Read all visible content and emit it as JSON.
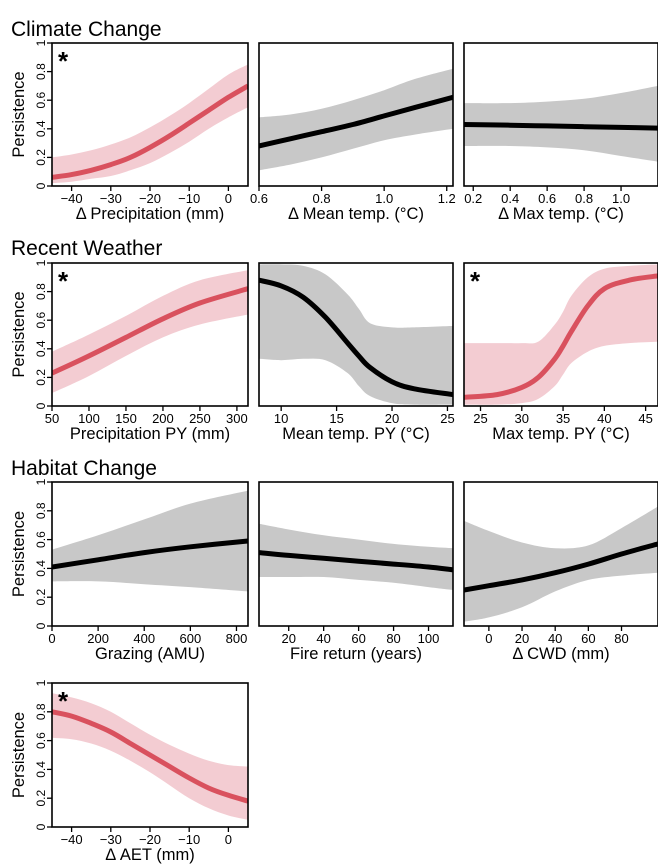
{
  "colors": {
    "sig_line": "#d9515e",
    "sig_band": "#f3ccd2",
    "ns_line": "#000000",
    "ns_band": "#c8c8c8"
  },
  "sections": [
    {
      "title": "Climate Change"
    },
    {
      "title": "Recent Weather"
    },
    {
      "title": "Habitat Change"
    },
    {
      "title": ""
    }
  ],
  "y_axis": {
    "label": "Persistence",
    "ticks": [
      "0",
      "0.2",
      "0.4",
      "0.6",
      "0.8",
      "1"
    ]
  },
  "chart_data": [
    {
      "type": "line",
      "section": 0,
      "col": 0,
      "xlabel": "Δ Precipitation (mm)",
      "significant": true,
      "star": "*",
      "xlim": [
        -45,
        5
      ],
      "ylim": [
        0,
        1
      ],
      "xticks": [
        -40,
        -30,
        -20,
        -10,
        0
      ],
      "xtick_labels": [
        "−40",
        "−30",
        "−20",
        "−10",
        "0"
      ],
      "x": [
        -45,
        -40,
        -35,
        -30,
        -25,
        -20,
        -15,
        -10,
        -5,
        0,
        5
      ],
      "y": [
        0.06,
        0.08,
        0.11,
        0.15,
        0.2,
        0.27,
        0.35,
        0.44,
        0.53,
        0.62,
        0.7
      ],
      "lower": [
        0.02,
        0.03,
        0.05,
        0.07,
        0.11,
        0.16,
        0.23,
        0.31,
        0.4,
        0.48,
        0.55
      ],
      "upper": [
        0.2,
        0.22,
        0.25,
        0.29,
        0.34,
        0.41,
        0.49,
        0.58,
        0.68,
        0.78,
        0.85
      ]
    },
    {
      "type": "line",
      "section": 0,
      "col": 1,
      "xlabel": "Δ Mean temp. (°C)",
      "significant": false,
      "xlim": [
        0.6,
        1.22
      ],
      "ylim": [
        0,
        1
      ],
      "xticks": [
        0.6,
        0.8,
        1.0,
        1.2
      ],
      "xtick_labels": [
        "0.6",
        "0.8",
        "1.0",
        "1.2"
      ],
      "x": [
        0.6,
        0.7,
        0.8,
        0.9,
        1.0,
        1.1,
        1.22
      ],
      "y": [
        0.28,
        0.33,
        0.38,
        0.43,
        0.49,
        0.55,
        0.62
      ],
      "lower": [
        0.11,
        0.15,
        0.2,
        0.26,
        0.32,
        0.36,
        0.4
      ],
      "upper": [
        0.48,
        0.5,
        0.54,
        0.6,
        0.67,
        0.75,
        0.82
      ]
    },
    {
      "type": "line",
      "section": 0,
      "col": 2,
      "xlabel": "Δ Max temp. (°C)",
      "significant": false,
      "xlim": [
        0.15,
        1.2
      ],
      "ylim": [
        0,
        1
      ],
      "xticks": [
        0.2,
        0.4,
        0.6,
        0.8,
        1.0
      ],
      "xtick_labels": [
        "0.2",
        "0.4",
        "0.6",
        "0.8",
        "1.0"
      ],
      "x": [
        0.15,
        0.4,
        0.6,
        0.8,
        1.0,
        1.2
      ],
      "y": [
        0.43,
        0.425,
        0.42,
        0.415,
        0.41,
        0.405
      ],
      "lower": [
        0.28,
        0.28,
        0.27,
        0.25,
        0.21,
        0.17
      ],
      "upper": [
        0.58,
        0.58,
        0.59,
        0.61,
        0.65,
        0.7
      ]
    },
    {
      "type": "line",
      "section": 1,
      "col": 0,
      "xlabel": "Precipitation PY (mm)",
      "significant": true,
      "star": "*",
      "xlim": [
        50,
        315
      ],
      "ylim": [
        0,
        1
      ],
      "xticks": [
        50,
        100,
        150,
        200,
        250,
        300
      ],
      "xtick_labels": [
        "50",
        "100",
        "150",
        "200",
        "250",
        "300"
      ],
      "x": [
        50,
        100,
        150,
        200,
        250,
        315
      ],
      "y": [
        0.23,
        0.35,
        0.48,
        0.61,
        0.72,
        0.82
      ],
      "lower": [
        0.09,
        0.21,
        0.35,
        0.48,
        0.57,
        0.64
      ],
      "upper": [
        0.38,
        0.5,
        0.63,
        0.77,
        0.88,
        0.95
      ]
    },
    {
      "type": "line",
      "section": 1,
      "col": 1,
      "xlabel": "Mean temp. PY (°C)",
      "significant": false,
      "xlim": [
        8,
        25.5
      ],
      "ylim": [
        0,
        1
      ],
      "xticks": [
        10,
        15,
        20,
        25
      ],
      "xtick_labels": [
        "10",
        "15",
        "20",
        "25"
      ],
      "x": [
        8,
        10,
        12,
        14,
        16,
        17,
        18,
        20,
        22,
        25.5
      ],
      "y": [
        0.88,
        0.84,
        0.76,
        0.62,
        0.44,
        0.35,
        0.27,
        0.17,
        0.12,
        0.08
      ],
      "lower": [
        0.33,
        0.32,
        0.33,
        0.32,
        0.23,
        0.14,
        0.07,
        0.02,
        0.01,
        0.01
      ],
      "upper": [
        0.99,
        0.99,
        0.98,
        0.92,
        0.78,
        0.68,
        0.58,
        0.55,
        0.55,
        0.56
      ]
    },
    {
      "type": "line",
      "section": 1,
      "col": 2,
      "xlabel": "Max temp. PY (°C)",
      "significant": true,
      "star": "*",
      "xlim": [
        23,
        46.5
      ],
      "ylim": [
        0,
        1
      ],
      "xticks": [
        25,
        30,
        35,
        40,
        45
      ],
      "xtick_labels": [
        "25",
        "30",
        "35",
        "40",
        "45"
      ],
      "x": [
        23,
        27,
        30,
        32,
        34,
        35,
        36,
        38,
        40,
        43,
        46.5
      ],
      "y": [
        0.06,
        0.08,
        0.13,
        0.2,
        0.33,
        0.42,
        0.52,
        0.7,
        0.82,
        0.88,
        0.91
      ],
      "lower": [
        0.01,
        0.01,
        0.02,
        0.05,
        0.14,
        0.22,
        0.3,
        0.38,
        0.42,
        0.44,
        0.45
      ],
      "upper": [
        0.44,
        0.44,
        0.44,
        0.45,
        0.57,
        0.66,
        0.77,
        0.9,
        0.96,
        0.98,
        0.99
      ]
    },
    {
      "type": "line",
      "section": 2,
      "col": 0,
      "xlabel": "Grazing (AMU)",
      "significant": false,
      "xlim": [
        0,
        850
      ],
      "ylim": [
        0,
        1
      ],
      "xticks": [
        0,
        200,
        400,
        600,
        800
      ],
      "xtick_labels": [
        "0",
        "200",
        "400",
        "600",
        "800"
      ],
      "x": [
        0,
        200,
        400,
        600,
        850
      ],
      "y": [
        0.41,
        0.46,
        0.51,
        0.55,
        0.59
      ],
      "lower": [
        0.31,
        0.31,
        0.29,
        0.27,
        0.24
      ],
      "upper": [
        0.53,
        0.63,
        0.74,
        0.85,
        0.94
      ]
    },
    {
      "type": "line",
      "section": 2,
      "col": 1,
      "xlabel": "Fire return (years)",
      "significant": false,
      "xlim": [
        3,
        114
      ],
      "ylim": [
        0,
        1
      ],
      "xticks": [
        20,
        40,
        60,
        80,
        100
      ],
      "xtick_labels": [
        "20",
        "40",
        "60",
        "80",
        "100"
      ],
      "x": [
        3,
        20,
        40,
        60,
        80,
        100,
        114
      ],
      "y": [
        0.51,
        0.49,
        0.47,
        0.45,
        0.43,
        0.41,
        0.39
      ],
      "lower": [
        0.34,
        0.34,
        0.34,
        0.32,
        0.3,
        0.27,
        0.25
      ],
      "upper": [
        0.71,
        0.67,
        0.63,
        0.6,
        0.57,
        0.55,
        0.54
      ]
    },
    {
      "type": "line",
      "section": 2,
      "col": 2,
      "xlabel": "Δ CWD (mm)",
      "significant": false,
      "xlim": [
        -15,
        102
      ],
      "ylim": [
        0,
        1
      ],
      "xticks": [
        0,
        20,
        40,
        60,
        80
      ],
      "xtick_labels": [
        "0",
        "20",
        "40",
        "60",
        "80"
      ],
      "x": [
        -15,
        0,
        20,
        40,
        60,
        80,
        102
      ],
      "y": [
        0.25,
        0.28,
        0.32,
        0.37,
        0.43,
        0.5,
        0.57
      ],
      "lower": [
        0.03,
        0.06,
        0.13,
        0.24,
        0.32,
        0.35,
        0.37
      ],
      "upper": [
        0.73,
        0.66,
        0.58,
        0.54,
        0.56,
        0.68,
        0.83
      ]
    },
    {
      "type": "line",
      "section": 3,
      "col": 0,
      "xlabel": "Δ AET (mm)",
      "significant": true,
      "star": "*",
      "xlim": [
        -45,
        5
      ],
      "ylim": [
        0,
        1
      ],
      "xticks": [
        -40,
        -30,
        -20,
        -10,
        0
      ],
      "xtick_labels": [
        "−40",
        "−30",
        "−20",
        "−10",
        "0"
      ],
      "x": [
        -45,
        -40,
        -35,
        -30,
        -25,
        -20,
        -15,
        -10,
        -5,
        0,
        5
      ],
      "y": [
        0.8,
        0.77,
        0.72,
        0.66,
        0.58,
        0.5,
        0.42,
        0.34,
        0.27,
        0.22,
        0.18
      ],
      "lower": [
        0.62,
        0.61,
        0.58,
        0.53,
        0.46,
        0.38,
        0.29,
        0.2,
        0.13,
        0.08,
        0.05
      ],
      "upper": [
        0.93,
        0.9,
        0.86,
        0.8,
        0.72,
        0.64,
        0.57,
        0.51,
        0.46,
        0.43,
        0.42
      ]
    }
  ]
}
